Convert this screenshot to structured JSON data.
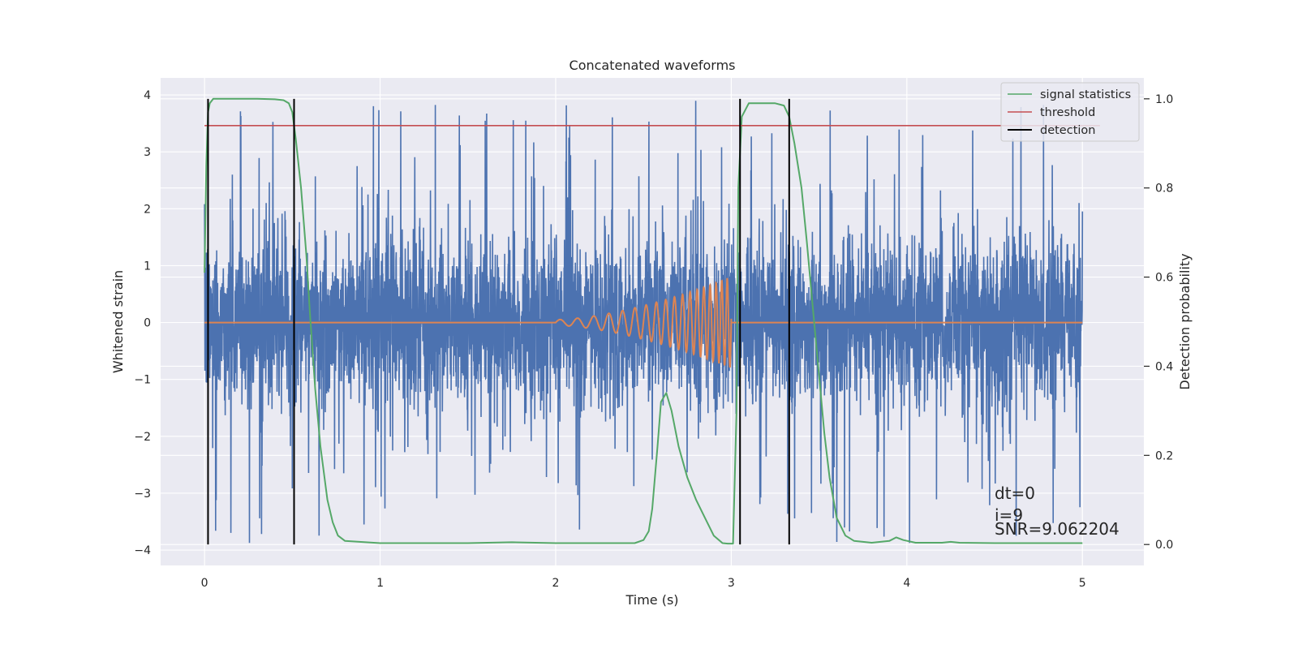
{
  "chart_data": {
    "type": "line",
    "title": "Concatenated waveforms",
    "xlabel": "Time (s)",
    "ylabel": "Whitened strain",
    "y2label": "Detection probability",
    "xlim": [
      -0.25,
      5.35
    ],
    "ylim": [
      -4.27,
      4.3
    ],
    "y2lim": [
      -0.047,
      1.047
    ],
    "xticks": [
      0,
      1,
      2,
      3,
      4,
      5
    ],
    "yticks": [
      -4,
      -3,
      -2,
      -1,
      0,
      1,
      2,
      3,
      4
    ],
    "y2ticks": [
      0.0,
      0.2,
      0.4,
      0.6,
      0.8,
      1.0
    ],
    "xtick_labels": [
      "0",
      "1",
      "2",
      "3",
      "4",
      "5"
    ],
    "ytick_labels": [
      "−4",
      "−3",
      "−2",
      "−1",
      "0",
      "1",
      "2",
      "3",
      "4"
    ],
    "y2tick_labels": [
      "0.0",
      "0.2",
      "0.4",
      "0.6",
      "0.8",
      "1.0"
    ],
    "grid": true,
    "legend_position": "top-right",
    "colors": {
      "background": "#eaeaf2",
      "grid": "#ffffff",
      "strain": "#4c72b0",
      "template": "#dd8452",
      "statistics": "#55a868",
      "threshold": "#c44e52",
      "detection": "#000000"
    },
    "series": [
      {
        "name": "strain",
        "axis": "left",
        "description_only": false,
        "sample_rate": 2048,
        "t_start": 0,
        "t_end": 5,
        "noise_std": 0.75,
        "burst_peak_max": 3.9
      },
      {
        "name": "template",
        "axis": "left",
        "segments": [
          {
            "t0": 0,
            "t1": 2.0,
            "value": 0
          },
          {
            "t0": 2.0,
            "t1": 3.0,
            "chirp_amp_start": 0.05,
            "chirp_amp_end": 0.8,
            "freq_start": 10,
            "freq_end": 34
          },
          {
            "t0": 3.0,
            "t1": 5.0,
            "value": 0
          }
        ]
      },
      {
        "name": "signal statistics",
        "axis": "right",
        "x": [
          0.0,
          0.01,
          0.02,
          0.03,
          0.05,
          0.1,
          0.2,
          0.3,
          0.4,
          0.45,
          0.48,
          0.5,
          0.52,
          0.55,
          0.58,
          0.6,
          0.63,
          0.66,
          0.7,
          0.73,
          0.76,
          0.8,
          1.0,
          1.5,
          1.75,
          2.0,
          2.45,
          2.5,
          2.53,
          2.55,
          2.58,
          2.6,
          2.63,
          2.66,
          2.7,
          2.75,
          2.8,
          2.85,
          2.9,
          2.95,
          2.98,
          3.01,
          3.03,
          3.04,
          3.06,
          3.1,
          3.2,
          3.25,
          3.3,
          3.33,
          3.36,
          3.4,
          3.43,
          3.46,
          3.5,
          3.53,
          3.56,
          3.6,
          3.65,
          3.7,
          3.8,
          3.9,
          3.94,
          3.98,
          4.05,
          4.2,
          4.25,
          4.3,
          4.5,
          4.75,
          5.0
        ],
        "y": [
          0.61,
          0.85,
          0.97,
          0.99,
          1.0,
          1.0,
          1.0,
          1.0,
          0.999,
          0.997,
          0.99,
          0.97,
          0.91,
          0.8,
          0.65,
          0.52,
          0.35,
          0.22,
          0.1,
          0.05,
          0.02,
          0.008,
          0.003,
          0.003,
          0.005,
          0.003,
          0.003,
          0.01,
          0.03,
          0.08,
          0.22,
          0.32,
          0.34,
          0.3,
          0.22,
          0.15,
          0.1,
          0.06,
          0.02,
          0.003,
          0.002,
          0.002,
          0.3,
          0.8,
          0.96,
          0.99,
          0.99,
          0.99,
          0.985,
          0.96,
          0.9,
          0.8,
          0.68,
          0.55,
          0.38,
          0.25,
          0.15,
          0.06,
          0.02,
          0.008,
          0.004,
          0.008,
          0.016,
          0.01,
          0.004,
          0.004,
          0.006,
          0.004,
          0.003,
          0.003,
          0.003
        ]
      },
      {
        "name": "threshold",
        "axis": "right",
        "x": [
          0.0,
          5.1
        ],
        "y": [
          0.94,
          0.94
        ]
      },
      {
        "name": "detection",
        "axis": "right",
        "x": [
          0.02,
          0.51,
          3.05,
          3.33
        ],
        "y_range": [
          0.0,
          1.0
        ]
      }
    ],
    "legend": [
      "signal statistics",
      "threshold",
      "detection"
    ],
    "annotations": [
      "dt=0",
      "i=9",
      "SNR=9.062204"
    ]
  }
}
